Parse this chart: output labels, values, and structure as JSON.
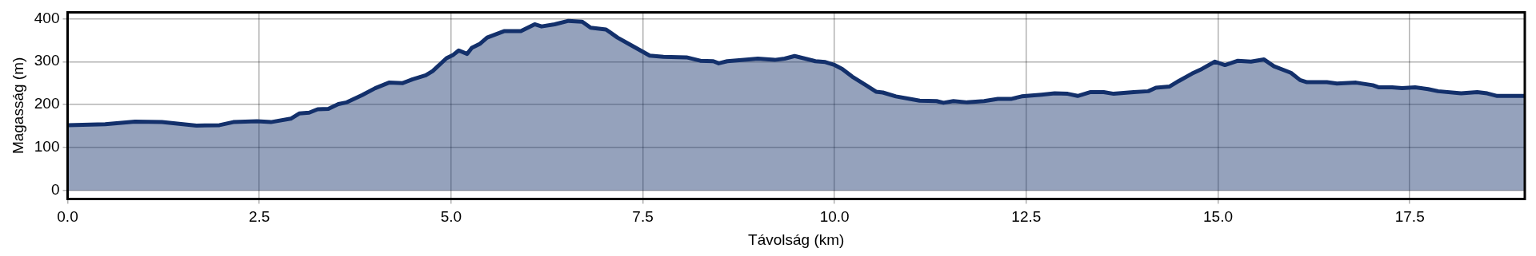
{
  "chart_data": {
    "type": "area",
    "xlabel": "Távolság (km)",
    "ylabel": "Magasság (m)",
    "x": [
      0,
      0.49,
      0.88,
      1.23,
      1.68,
      1.98,
      2.16,
      2.47,
      2.65,
      2.91,
      3.02,
      3.15,
      3.26,
      3.4,
      3.53,
      3.64,
      3.84,
      4.01,
      4.19,
      4.37,
      4.5,
      4.67,
      4.76,
      4.94,
      5.03,
      5.1,
      5.21,
      5.27,
      5.38,
      5.47,
      5.69,
      5.91,
      6.09,
      6.18,
      6.35,
      6.53,
      6.71,
      6.82,
      7.02,
      7.17,
      7.33,
      7.59,
      7.77,
      8.07,
      8.25,
      8.42,
      8.49,
      8.6,
      8.82,
      9,
      9.22,
      9.35,
      9.48,
      9.75,
      9.88,
      9.99,
      10.1,
      10.23,
      10.41,
      10.54,
      10.63,
      10.8,
      10.98,
      11.11,
      11.33,
      11.42,
      11.55,
      11.73,
      11.95,
      12.13,
      12.3,
      12.44,
      12.7,
      12.87,
      13.04,
      13.17,
      13.34,
      13.51,
      13.64,
      13.9,
      14.09,
      14.19,
      14.37,
      14.49,
      14.66,
      14.79,
      14.96,
      15.09,
      15.26,
      15.43,
      15.6,
      15.73,
      15.95,
      16.07,
      16.16,
      16.42,
      16.55,
      16.8,
      17.02,
      17.1,
      17.27,
      17.4,
      17.57,
      17.74,
      17.87,
      18.17,
      18.38,
      18.51,
      18.64,
      19
    ],
    "series": [
      {
        "color": "#13306b",
        "values": [
          152,
          154,
          160,
          159,
          151,
          152,
          159,
          161,
          159,
          167,
          179,
          181,
          189,
          190,
          201,
          205,
          222,
          238,
          251,
          250,
          259,
          268,
          278,
          308,
          316,
          326,
          318,
          332,
          342,
          356,
          371,
          371,
          387,
          382,
          387,
          395,
          393,
          379,
          375,
          356,
          340,
          314,
          311,
          310,
          302,
          301,
          296,
          301,
          304,
          307,
          304,
          307,
          313,
          301,
          299,
          293,
          283,
          265,
          245,
          230,
          228,
          219,
          213,
          209,
          208,
          204,
          208,
          205,
          208,
          213,
          213,
          219,
          223,
          226,
          225,
          220,
          229,
          229,
          225,
          229,
          231,
          239,
          242,
          255,
          272,
          283,
          300,
          292,
          302,
          300,
          305,
          289,
          274,
          257,
          252,
          252,
          249,
          251,
          245,
          240,
          240,
          238,
          240,
          236,
          231,
          226,
          229,
          226,
          220,
          220
        ]
      }
    ],
    "xlim": [
      0,
      19
    ],
    "ylim": [
      -20,
      415
    ],
    "xticks": [
      {
        "value": 0,
        "label": "0.0"
      },
      2.5,
      {
        "value": 5,
        "label": "5.0"
      },
      7.5,
      {
        "value": 10,
        "label": "10.0"
      },
      12.5,
      {
        "value": 15,
        "label": "15.0"
      },
      17.5
    ],
    "yticks": [
      0,
      100,
      200,
      300,
      400
    ],
    "grid": true,
    "marker": "none",
    "line_style": "solid"
  }
}
